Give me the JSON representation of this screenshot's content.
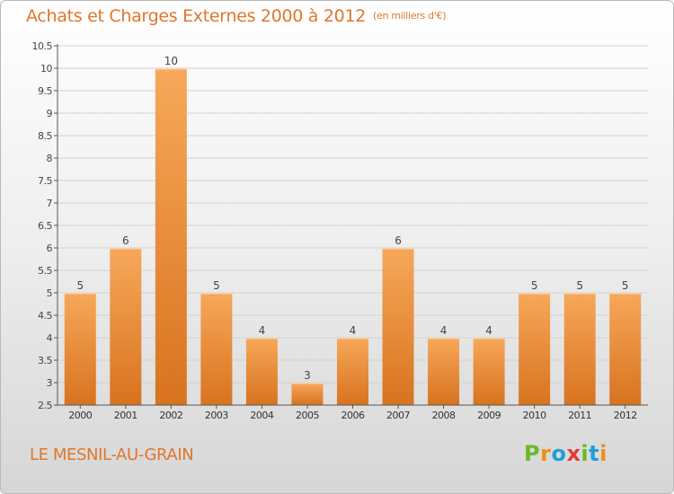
{
  "header": {
    "title": "Achats et Charges Externes 2000 à 2012",
    "unit": "(en milliers d'€)"
  },
  "footer": {
    "commune": "LE MESNIL-AU-GRAIN",
    "logo_letters": [
      "P",
      "r",
      "o",
      "x",
      "i",
      "t",
      "i"
    ]
  },
  "colors": {
    "title": "#e0772b",
    "bar_light": "#f7a85a",
    "bar_dark": "#d8731f",
    "logo": [
      "#6bb82c",
      "#f08c18",
      "#1f9fd8",
      "#e23b3b",
      "#6bb82c",
      "#1f9fd8",
      "#f08c18"
    ]
  },
  "chart_data": {
    "type": "bar",
    "categories": [
      "2000",
      "2001",
      "2002",
      "2003",
      "2004",
      "2005",
      "2006",
      "2007",
      "2008",
      "2009",
      "2010",
      "2011",
      "2012"
    ],
    "values": [
      5,
      6,
      10,
      5,
      4,
      3,
      4,
      6,
      4,
      4,
      5,
      5,
      5
    ],
    "data_labels": [
      "5",
      "6",
      "10",
      "5",
      "4",
      "3",
      "4",
      "6",
      "4",
      "4",
      "5",
      "5",
      "5"
    ],
    "y_ticks": [
      "2.5",
      "3",
      "3.5",
      "4",
      "4.5",
      "5",
      "5.5",
      "6",
      "6.5",
      "7",
      "7.5",
      "8",
      "8.5",
      "9",
      "9.5",
      "10",
      "10.5"
    ],
    "ylim": [
      2.5,
      10.5
    ],
    "grid": true,
    "legend": "none"
  }
}
